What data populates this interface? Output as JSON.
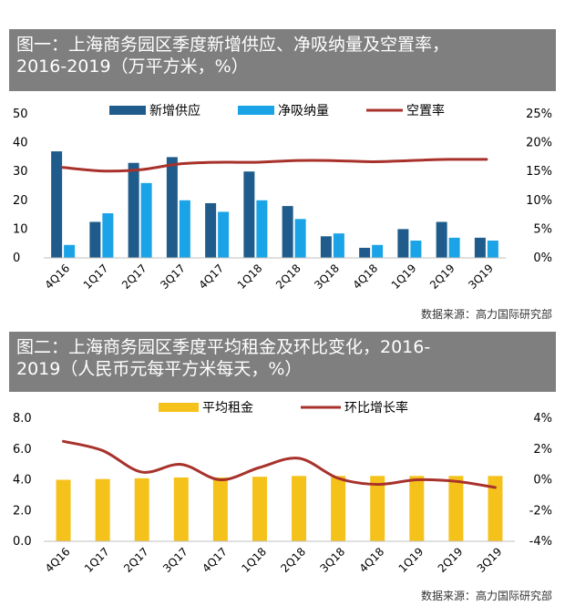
{
  "colors": {
    "dark_blue": "#1f5c8b",
    "light_blue": "#1aa3e6",
    "red_line": "#a8322b",
    "gold": "#f5c21b",
    "title_band": "#7f7f7f"
  },
  "chart1_title_lines": [
    "图一：上海商务园区季度新增供应、净吸纳量及空置率，",
    "2016-2019（万平方米，%）"
  ],
  "chart2_title_lines": [
    "图二：上海商务园区季度平均租金及环比变化，2016-",
    "2019（人民币元每平方米每天，%）"
  ],
  "source_text": "数据来源：高力国际研究部",
  "chart_data": [
    {
      "type": "bar",
      "title": "图一：上海商务园区季度新增供应、净吸纳量及空置率，2016-2019（万平方米，%）",
      "categories": [
        "4Q16",
        "1Q17",
        "2Q17",
        "3Q17",
        "4Q17",
        "1Q18",
        "2Q18",
        "3Q18",
        "4Q18",
        "1Q19",
        "2Q19",
        "3Q19"
      ],
      "series": [
        {
          "name": "新增供应",
          "axis": "left",
          "values": [
            37,
            12.5,
            33,
            35,
            19,
            30,
            18,
            7.5,
            3.5,
            10,
            12.5,
            7
          ]
        },
        {
          "name": "净吸纳量",
          "axis": "left",
          "values": [
            4.5,
            15.5,
            26,
            20,
            16,
            20,
            13.5,
            8.5,
            4.5,
            6,
            7,
            6
          ]
        },
        {
          "name": "空置率",
          "axis": "right",
          "type": "line",
          "values": [
            15.7,
            15.1,
            15.3,
            16.3,
            16.6,
            16.6,
            16.9,
            16.9,
            16.7,
            16.9,
            17.1,
            17.1
          ]
        }
      ],
      "ylim_left": [
        0,
        50
      ],
      "yticks_left": [
        "0",
        "10",
        "20",
        "30",
        "40",
        "50"
      ],
      "ylim_right": [
        0,
        25
      ],
      "yticks_right": [
        "0%",
        "5%",
        "10%",
        "15%",
        "20%",
        "25%"
      ],
      "legend_position": "top"
    },
    {
      "type": "bar",
      "title": "图二：上海商务园区季度平均租金及环比变化，2016-2019（人民币元每平方米每天，%）",
      "categories": [
        "4Q16",
        "1Q17",
        "2Q17",
        "3Q17",
        "4Q17",
        "1Q18",
        "2Q18",
        "3Q18",
        "4Q18",
        "1Q19",
        "2Q19",
        "3Q19"
      ],
      "series": [
        {
          "name": "平均租金",
          "axis": "left",
          "values": [
            4.0,
            4.05,
            4.1,
            4.15,
            4.15,
            4.2,
            4.25,
            4.25,
            4.25,
            4.25,
            4.25,
            4.25
          ]
        },
        {
          "name": "环比增长率",
          "axis": "right",
          "type": "line",
          "values": [
            2.5,
            1.9,
            0.5,
            1.0,
            0.0,
            0.8,
            1.4,
            0.1,
            -0.3,
            0.0,
            -0.1,
            -0.5
          ]
        }
      ],
      "ylim_left": [
        0,
        8
      ],
      "yticks_left": [
        "0.0",
        "2.0",
        "4.0",
        "6.0",
        "8.0"
      ],
      "ylim_right": [
        -4,
        4
      ],
      "yticks_right": [
        "-4%",
        "-2%",
        "0%",
        "2%",
        "4%"
      ],
      "legend_position": "top"
    }
  ]
}
